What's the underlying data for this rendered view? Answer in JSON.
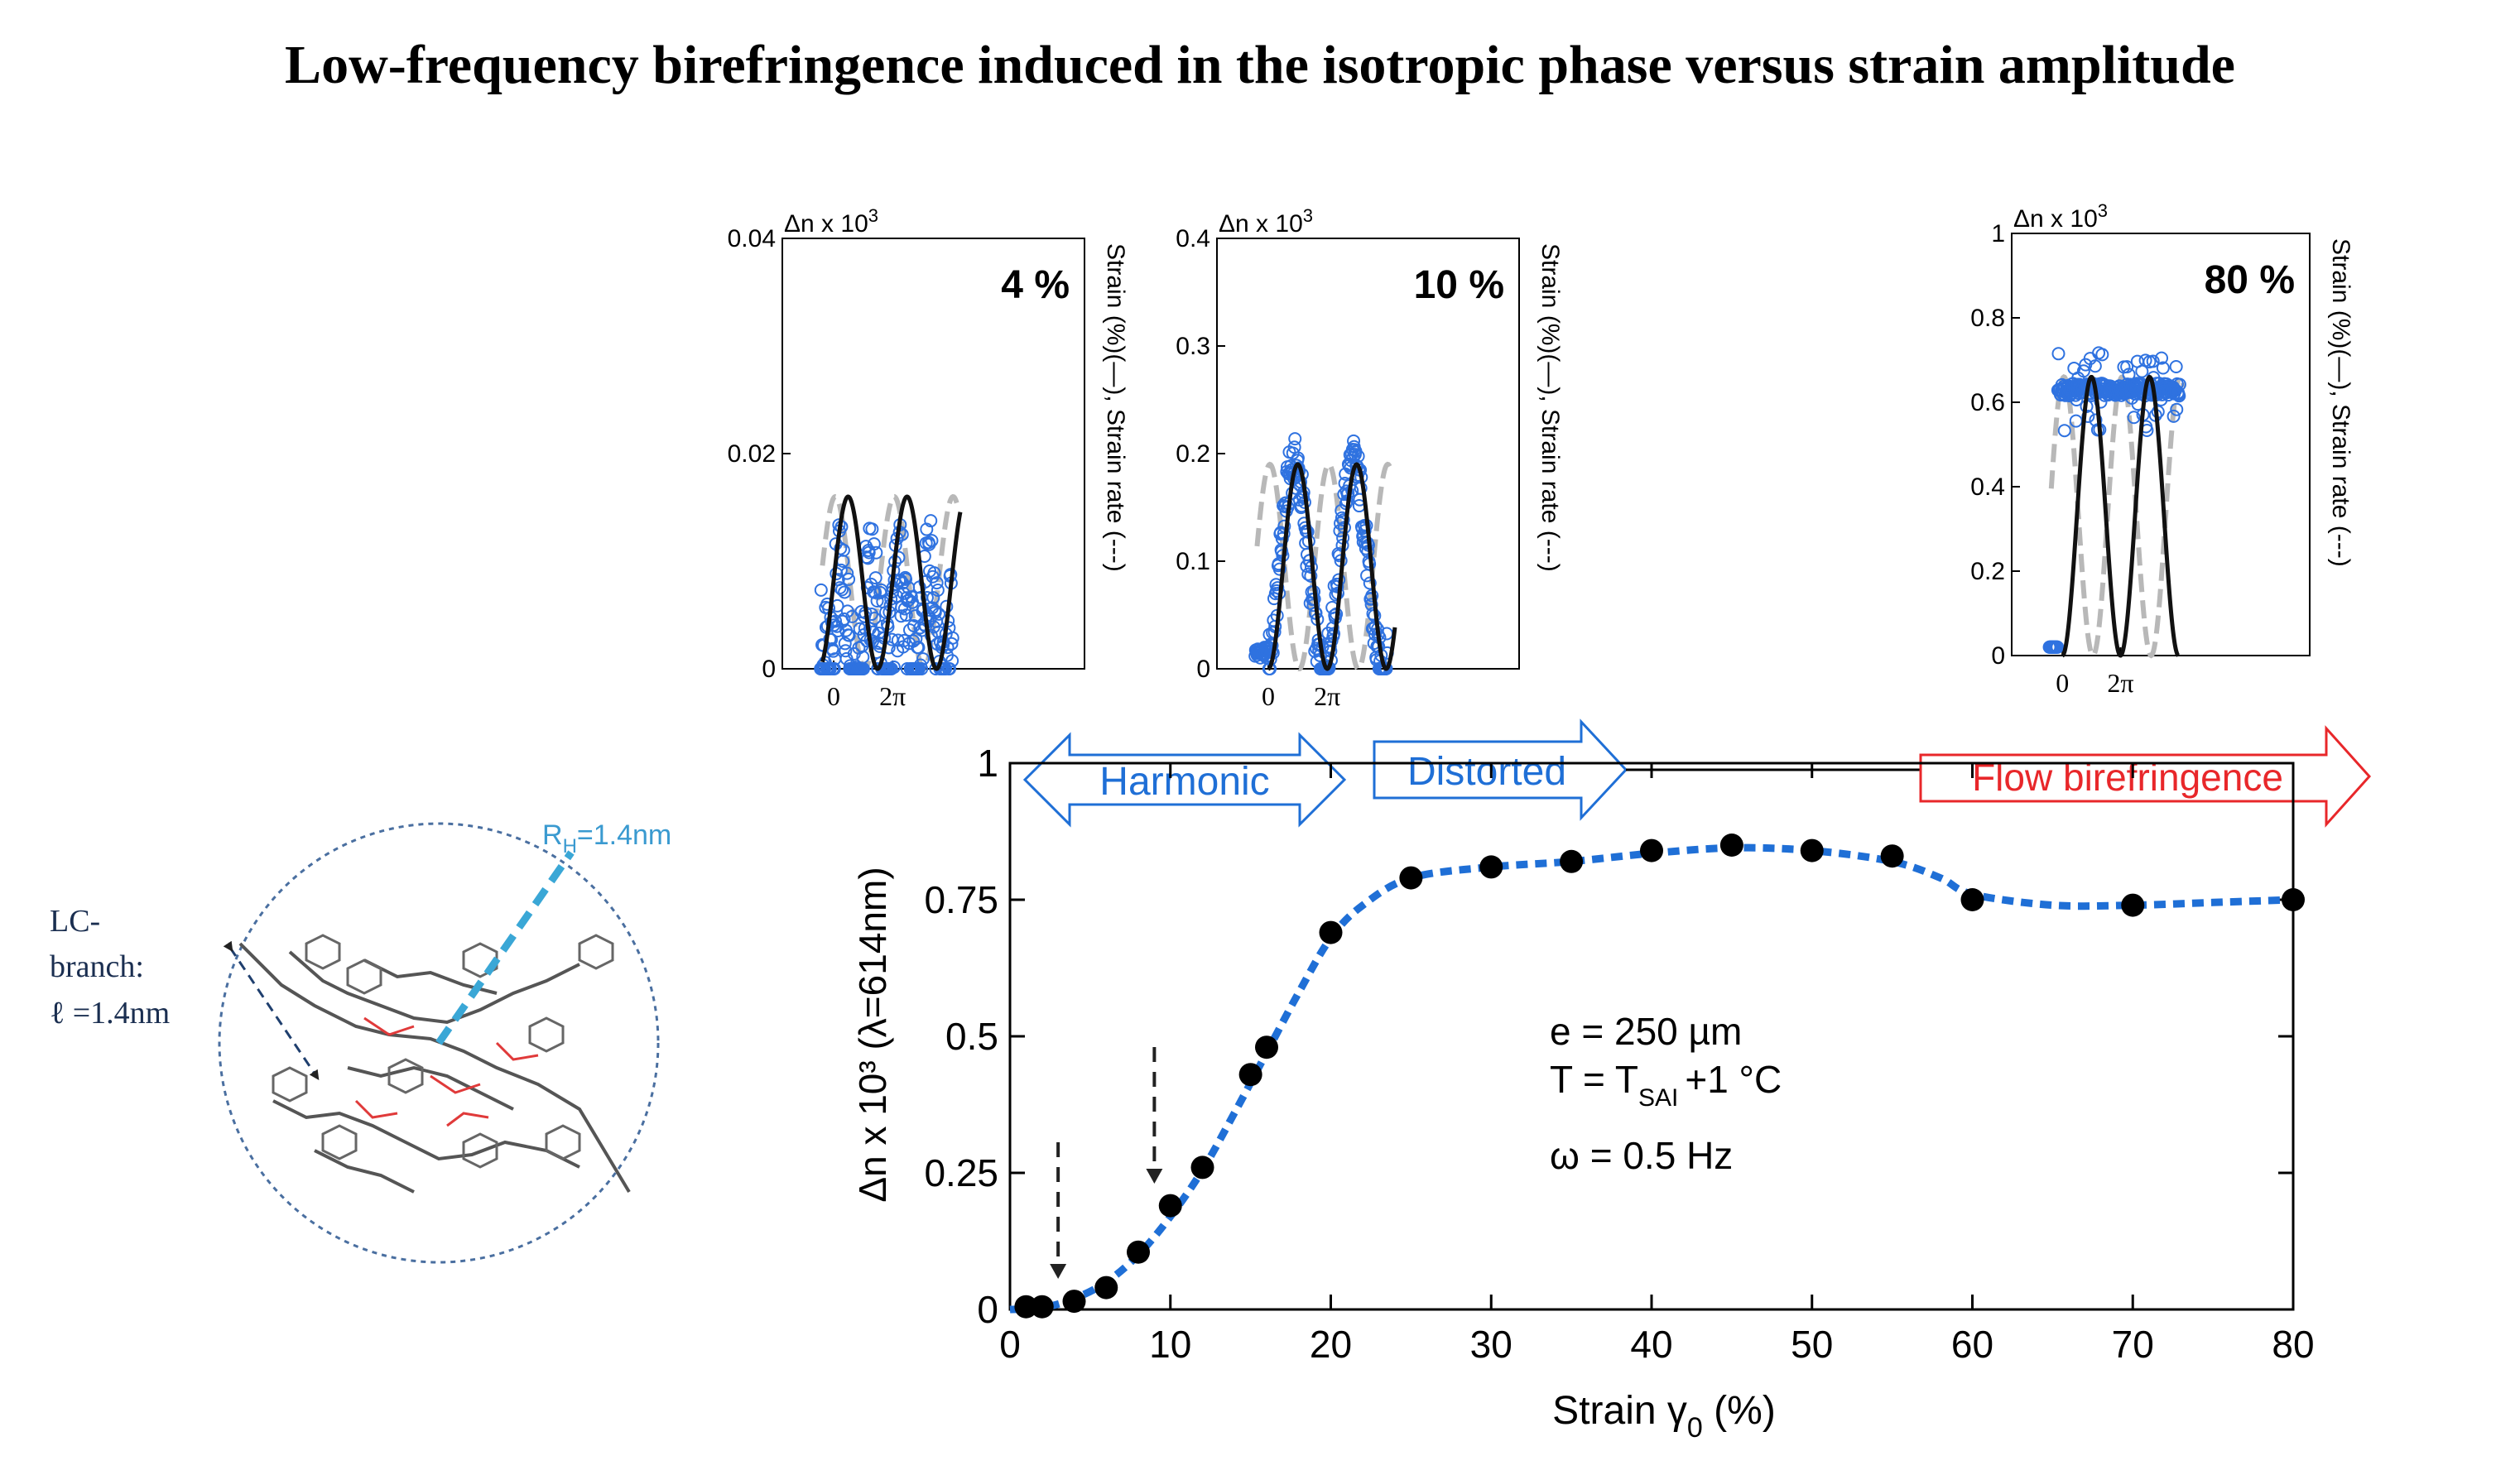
{
  "page_title": "Low-frequency birefringence induced in the isotropic phase versus strain amplitude",
  "colors": {
    "blue": "#1f6fd6",
    "data_blue": "#2f72e0",
    "red": "#e8272a",
    "gray": "#b8b8b8",
    "black": "#111111"
  },
  "molecule": {
    "lc_label_line1": "LC-",
    "lc_label_line2": "branch:",
    "lc_label_line3": "ℓ =1.4nm",
    "rh_label_main": "R",
    "rh_label_sub": "H",
    "rh_label_value": "=1.4nm"
  },
  "regimes": {
    "harmonic": "Harmonic",
    "distorted": "Distorted",
    "flow": "Flow birefringence"
  },
  "insets": [
    {
      "title": "4 %",
      "y_top_label": "Δn x 10",
      "y_top_exp": "3",
      "ylim": [
        0,
        0.04
      ],
      "yticks": [
        "0.04",
        "0.02",
        "0"
      ],
      "ytick_values": [
        0.04,
        0.02,
        0
      ],
      "xticks": [
        "0",
        "2π"
      ],
      "right_label": "Strain (%)(—), Strain rate (---)",
      "series": {
        "strain_amplitude": 0.016,
        "birefringence_level": 0.008
      }
    },
    {
      "title": "10 %",
      "y_top_label": "Δn x 10",
      "y_top_exp": "3",
      "ylim": [
        0,
        0.4
      ],
      "yticks": [
        "0.4",
        "0.3",
        "0.2",
        "0.1",
        "0"
      ],
      "ytick_values": [
        0.4,
        0.3,
        0.2,
        0.1,
        0
      ],
      "xticks": [
        "0",
        "2π"
      ],
      "right_label": "Strain (%)(—), Strain rate (---)",
      "series": {
        "strain_amplitude": 0.19,
        "birefringence_peak": 0.19
      }
    },
    {
      "title": "80 %",
      "y_top_label": "Δn x 10",
      "y_top_exp": "3",
      "ylim": [
        0,
        1
      ],
      "yticks": [
        "1",
        "0.8",
        "0.6",
        "0.4",
        "0.2",
        "0"
      ],
      "ytick_values": [
        1,
        0.8,
        0.6,
        0.4,
        0.2,
        0
      ],
      "xticks": [
        "0",
        "2π"
      ],
      "right_label": "Strain (%)(—), Strain rate (---)",
      "series": {
        "strain_amplitude": 0.66,
        "birefringence_plateau": 0.63
      }
    }
  ],
  "chart_data": {
    "type": "scatter",
    "title": "",
    "xlabel": "Strain γ",
    "xlabel_sub": "0",
    "xlabel_unit": " (%)",
    "ylabel": "Δn x 10³ (λ=614nm)",
    "xlim": [
      0,
      80
    ],
    "ylim": [
      0,
      1
    ],
    "xticks": [
      0,
      10,
      20,
      30,
      40,
      50,
      60,
      70,
      80
    ],
    "yticks": [
      0,
      0.25,
      0.5,
      0.75,
      1
    ],
    "ytick_labels": [
      "0",
      "0.25",
      "0.5",
      "0.75",
      "1"
    ],
    "series": [
      {
        "name": "Δn",
        "x": [
          1,
          2,
          4,
          6,
          8,
          10,
          12,
          15,
          16,
          20,
          25,
          30,
          35,
          40,
          45,
          50,
          55,
          60,
          70,
          80
        ],
        "y": [
          0.005,
          0.005,
          0.015,
          0.04,
          0.105,
          0.19,
          0.26,
          0.43,
          0.48,
          0.69,
          0.79,
          0.81,
          0.82,
          0.84,
          0.85,
          0.84,
          0.83,
          0.75,
          0.74,
          0.75
        ]
      }
    ],
    "fit_curve": {
      "x": [
        0,
        2,
        4,
        6,
        8,
        10,
        12,
        14,
        16,
        18,
        20,
        22,
        25,
        30,
        35,
        40,
        45,
        50,
        55,
        58,
        60,
        65,
        70,
        75,
        80
      ],
      "y": [
        0,
        0.003,
        0.02,
        0.05,
        0.1,
        0.17,
        0.255,
        0.36,
        0.47,
        0.58,
        0.68,
        0.74,
        0.79,
        0.81,
        0.82,
        0.835,
        0.845,
        0.84,
        0.82,
        0.79,
        0.76,
        0.74,
        0.74,
        0.745,
        0.75
      ]
    },
    "arrows_at_x": [
      3,
      9
    ],
    "annotation_lines": [
      "e = 250 µm",
      "T = T",
      "+1 °C",
      "ω = 0.5 Hz"
    ],
    "annotation_sub": "SAI"
  }
}
